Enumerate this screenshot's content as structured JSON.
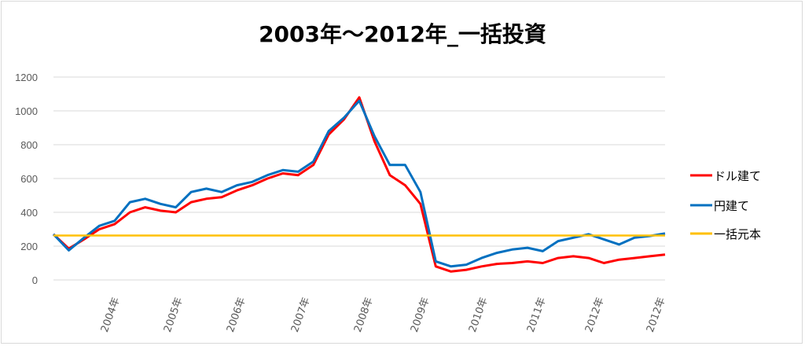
{
  "chart_data": {
    "type": "line",
    "title": "2003年～2012年_一括投資",
    "xlabel": "",
    "ylabel": "",
    "ylim": [
      0,
      1200
    ],
    "y_ticks": [
      0,
      200,
      400,
      600,
      800,
      1000,
      1200
    ],
    "x_tick_labels": [
      "2004年",
      "2005年",
      "2006年",
      "2007年",
      "2008年",
      "2009年",
      "2010年",
      "2011年",
      "2012年",
      "2012年"
    ],
    "grid": true,
    "legend_position": "right",
    "x": [
      "2003-01",
      "2003-04",
      "2003-07",
      "2003-10",
      "2004-01",
      "2004-04",
      "2004-07",
      "2004-10",
      "2005-01",
      "2005-04",
      "2005-07",
      "2005-10",
      "2006-01",
      "2006-04",
      "2006-07",
      "2006-10",
      "2007-01",
      "2007-04",
      "2007-07",
      "2007-10",
      "2008-01",
      "2008-04",
      "2008-07",
      "2008-10",
      "2009-01",
      "2009-04",
      "2009-07",
      "2009-10",
      "2010-01",
      "2010-04",
      "2010-07",
      "2010-10",
      "2011-01",
      "2011-04",
      "2011-07",
      "2011-10",
      "2012-01",
      "2012-04",
      "2012-07",
      "2012-10",
      "2012-12"
    ],
    "series": [
      {
        "name": "ドル建て",
        "color": "#ff0000",
        "values": [
          270,
          185,
          240,
          300,
          330,
          400,
          430,
          410,
          400,
          460,
          480,
          490,
          530,
          560,
          600,
          630,
          620,
          680,
          860,
          950,
          1080,
          820,
          620,
          560,
          450,
          80,
          50,
          60,
          80,
          95,
          100,
          110,
          100,
          130,
          140,
          130,
          100,
          120,
          130,
          140,
          150
        ]
      },
      {
        "name": "円建て",
        "color": "#0070c0",
        "values": [
          270,
          175,
          250,
          320,
          350,
          460,
          480,
          450,
          430,
          520,
          540,
          520,
          560,
          580,
          620,
          650,
          640,
          700,
          880,
          960,
          1060,
          850,
          680,
          680,
          520,
          110,
          80,
          90,
          130,
          160,
          180,
          190,
          170,
          230,
          250,
          270,
          240,
          210,
          250,
          260,
          275
        ]
      },
      {
        "name": "一括元本",
        "color": "#ffc000",
        "values": [
          263,
          263,
          263,
          263,
          263,
          263,
          263,
          263,
          263,
          263,
          263,
          263,
          263,
          263,
          263,
          263,
          263,
          263,
          263,
          263,
          263,
          263,
          263,
          263,
          263,
          263,
          263,
          263,
          263,
          263,
          263,
          263,
          263,
          263,
          263,
          263,
          263,
          263,
          263,
          263,
          263
        ]
      }
    ]
  }
}
